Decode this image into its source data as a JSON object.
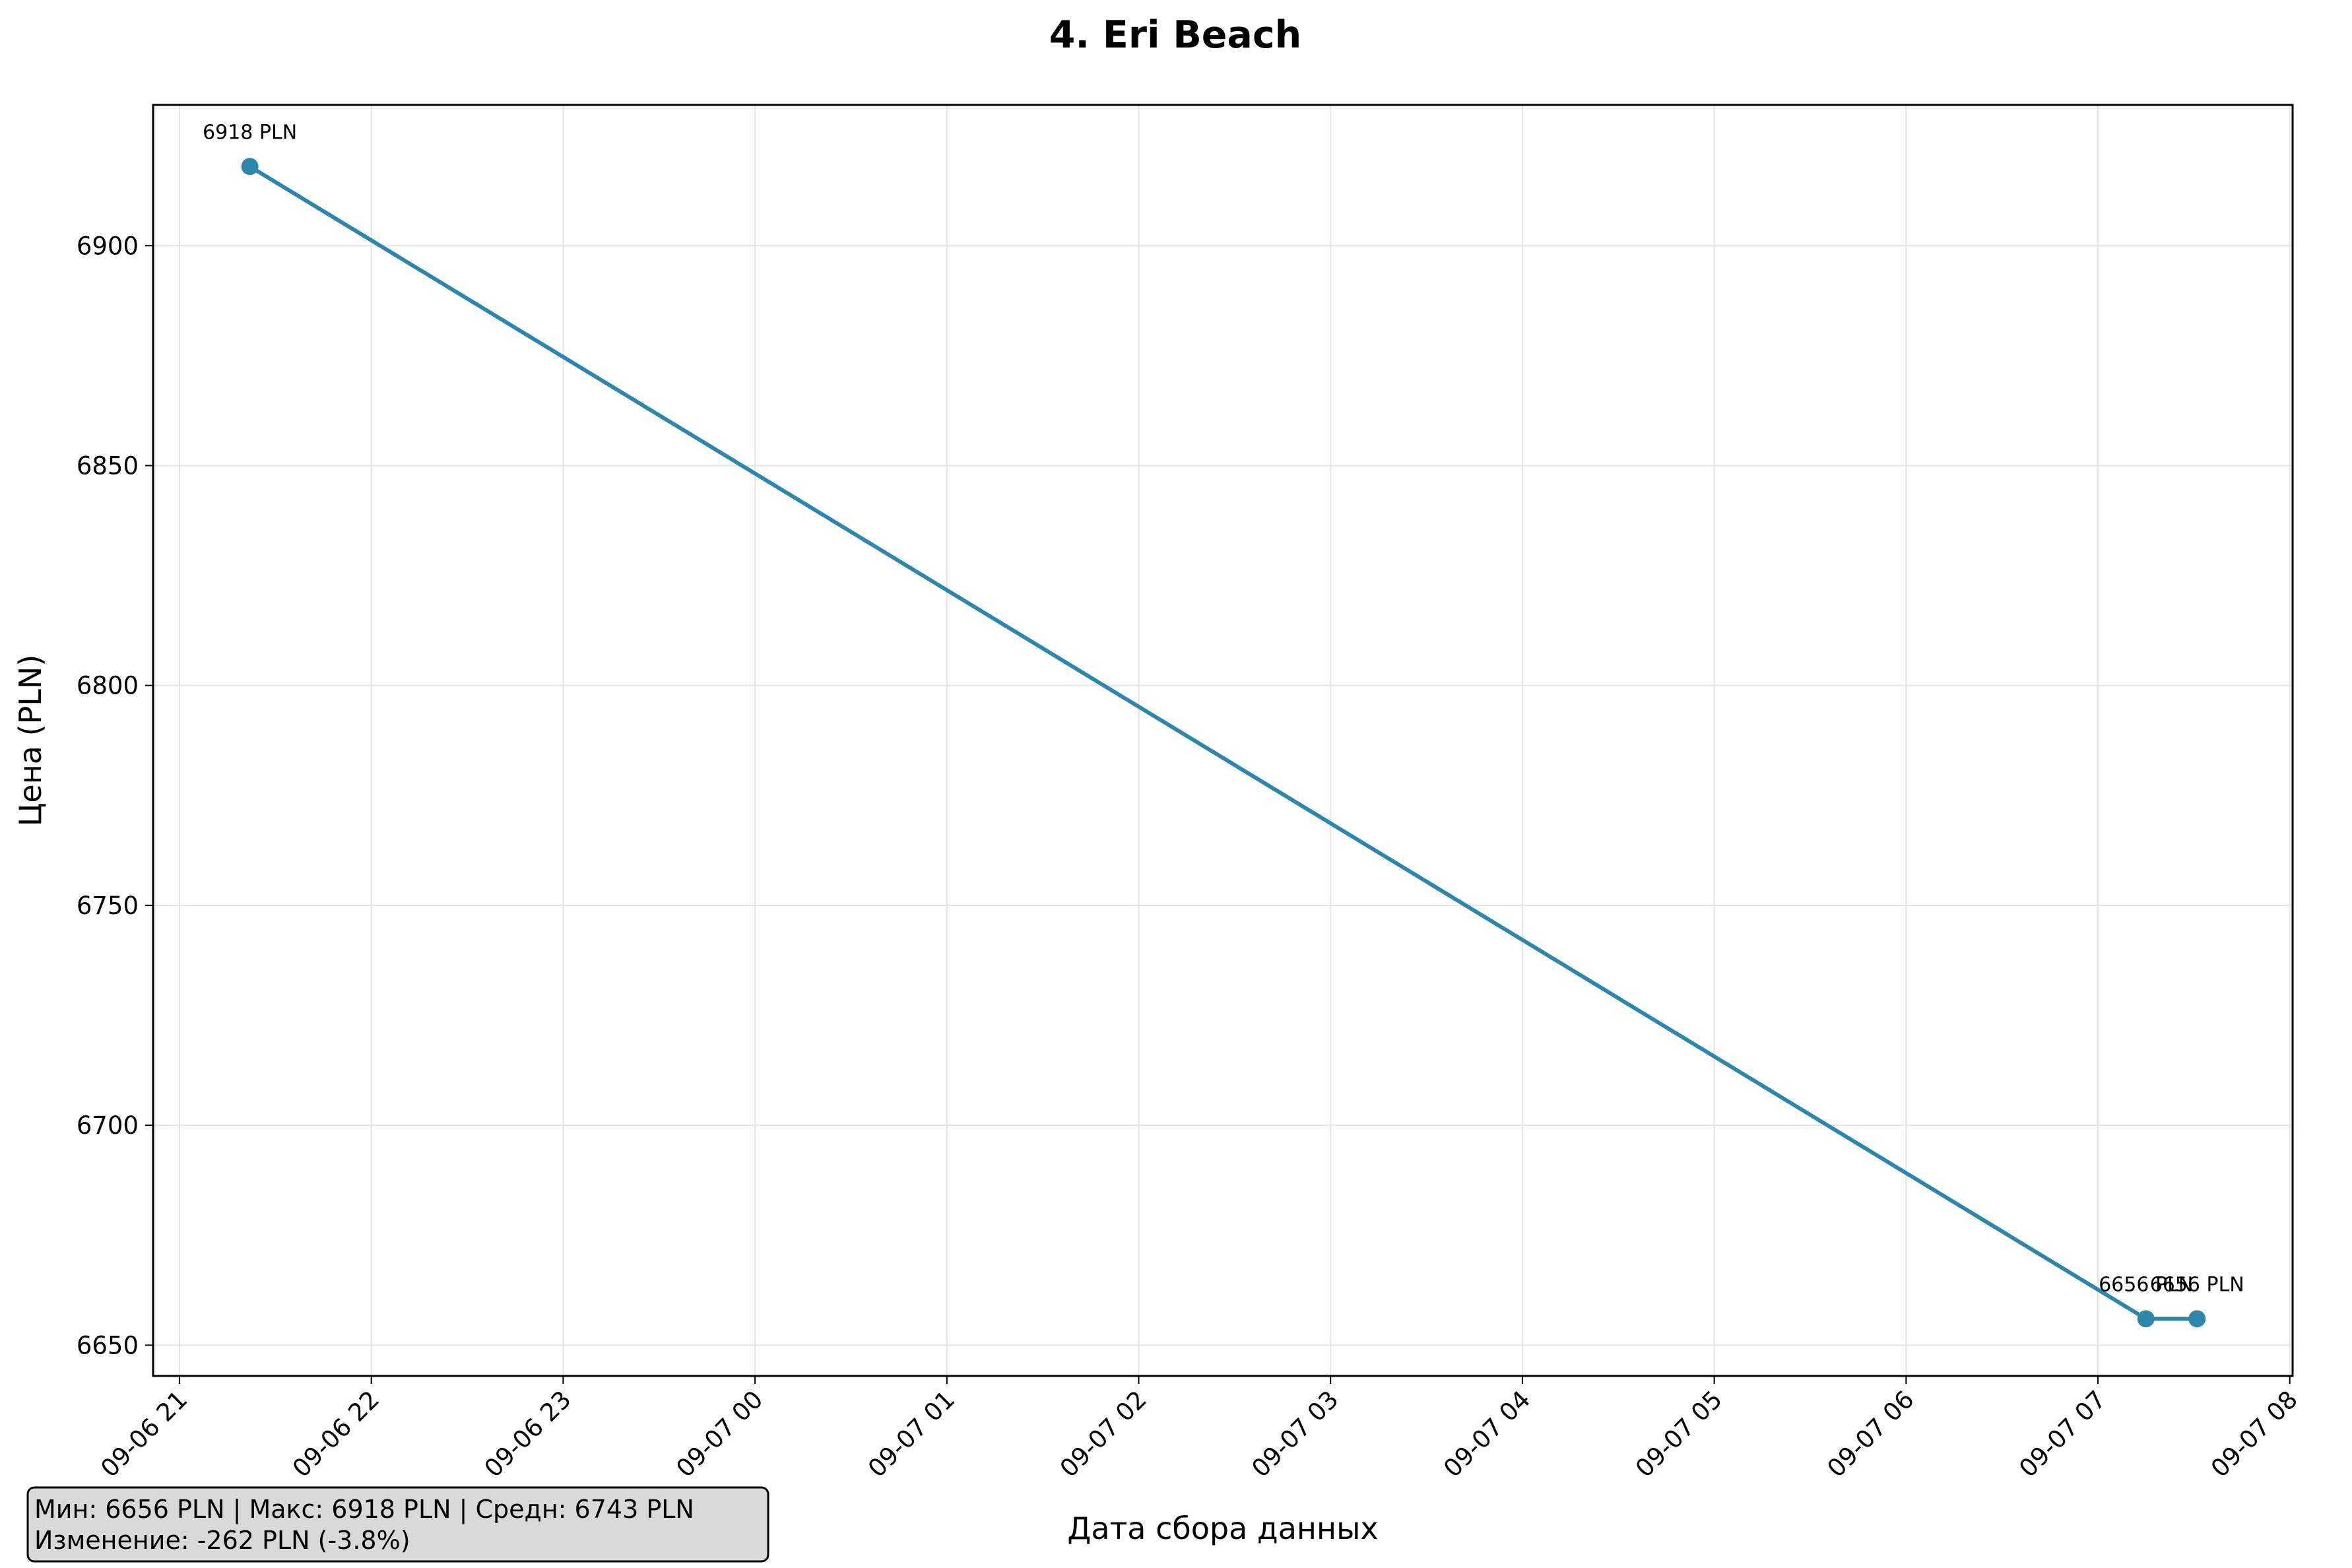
{
  "chart_data": {
    "type": "line",
    "title": "4. Eri Beach",
    "xlabel": "Дата сбора данных",
    "ylabel": "Цена (PLN)",
    "x_tick_labels": [
      "09-06 21",
      "09-06 22",
      "09-06 23",
      "09-07 00",
      "09-07 01",
      "09-07 02",
      "09-07 03",
      "09-07 04",
      "09-07 05",
      "09-07 06",
      "09-07 07",
      "09-07 08"
    ],
    "y_ticks": [
      6650,
      6700,
      6750,
      6800,
      6850,
      6900
    ],
    "x_range": [
      "2023-09-06 21:00",
      "2023-09-07 08:00"
    ],
    "ylim": [
      6643,
      6932
    ],
    "grid": true,
    "series": [
      {
        "color": "#2e86ab",
        "points": [
          {
            "x": "09-06 21:22",
            "y": 6918,
            "label": "6918 PLN"
          },
          {
            "x": "09-07 07:15",
            "y": 6656,
            "label": "6656 PLN"
          },
          {
            "x": "09-07 07:31",
            "y": 6656,
            "label": "6656 PLN"
          }
        ]
      }
    ],
    "stats": {
      "line1": "Мин: 6656 PLN | Макс: 6918 PLN | Средн: 6743 PLN",
      "line2": "Изменение: -262 PLN (-3.8%)"
    }
  }
}
